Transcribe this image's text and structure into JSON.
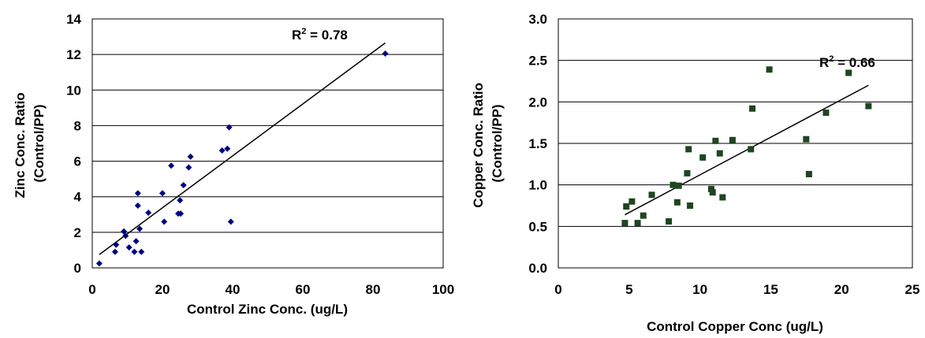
{
  "chart_data": [
    {
      "type": "scatter",
      "xlabel": "Control Zinc Conc. (ug/L)",
      "ylabel_lines": [
        "Zinc Conc. Ratio",
        "(Control/PP)"
      ],
      "xlim": [
        0,
        100
      ],
      "ylim": [
        0,
        14
      ],
      "xticks": [
        0,
        20,
        40,
        60,
        80,
        100
      ],
      "yticks": [
        0,
        2,
        4,
        6,
        8,
        10,
        12,
        14
      ],
      "grid": "horizontal",
      "marker": "diamond",
      "marker_color": "#000080",
      "annotation": {
        "r2_label": "R",
        "r2_sup": "2",
        "r2_value": " = 0.78"
      },
      "trendline": {
        "x": [
          2,
          83.5
        ],
        "y": [
          0.75,
          12.65
        ]
      },
      "points": [
        [
          2,
          0.25
        ],
        [
          6.5,
          0.9
        ],
        [
          6.8,
          1.3
        ],
        [
          9,
          2.05
        ],
        [
          9.5,
          1.8
        ],
        [
          10.5,
          1.15
        ],
        [
          12,
          0.9
        ],
        [
          12.5,
          1.5
        ],
        [
          13,
          3.5
        ],
        [
          13,
          4.2
        ],
        [
          13.5,
          2.2
        ],
        [
          14,
          0.9
        ],
        [
          16,
          3.1
        ],
        [
          20,
          4.2
        ],
        [
          20.5,
          2.6
        ],
        [
          22.5,
          5.75
        ],
        [
          24.5,
          3.05
        ],
        [
          25,
          3.8
        ],
        [
          25.2,
          3.05
        ],
        [
          26,
          4.65
        ],
        [
          27.5,
          5.65
        ],
        [
          28,
          6.25
        ],
        [
          37,
          6.6
        ],
        [
          38.5,
          6.7
        ],
        [
          39,
          7.9
        ],
        [
          39.5,
          2.6
        ],
        [
          83.5,
          12.05
        ]
      ]
    },
    {
      "type": "scatter",
      "xlabel": "Control Copper Conc (ug/L)",
      "ylabel_lines": [
        "Copper Conc. Ratio",
        "(Control/PP)"
      ],
      "xlim": [
        0,
        25
      ],
      "ylim": [
        0,
        3
      ],
      "xticks": [
        0,
        5,
        10,
        15,
        20,
        25
      ],
      "yticks": [
        0.0,
        0.5,
        1.0,
        1.5,
        2.0,
        2.5,
        3.0
      ],
      "ytick_labels": [
        "0.0",
        "0.5",
        "1.0",
        "1.5",
        "2.0",
        "2.5",
        "3.0"
      ],
      "grid": "horizontal",
      "marker": "square",
      "marker_color": "#1e4620",
      "annotation": {
        "r2_label": "R",
        "r2_sup": "2",
        "r2_value": " = 0.66"
      },
      "trendline": {
        "x": [
          4.7,
          21.9
        ],
        "y": [
          0.64,
          2.2
        ]
      },
      "points": [
        [
          4.7,
          0.54
        ],
        [
          4.8,
          0.74
        ],
        [
          5.2,
          0.8
        ],
        [
          5.6,
          0.54
        ],
        [
          6,
          0.63
        ],
        [
          6.6,
          0.88
        ],
        [
          7.8,
          0.56
        ],
        [
          8.1,
          1.0
        ],
        [
          8.4,
          0.79
        ],
        [
          8.5,
          0.99
        ],
        [
          9.1,
          1.14
        ],
        [
          9.2,
          1.43
        ],
        [
          9.3,
          0.75
        ],
        [
          10.2,
          1.33
        ],
        [
          10.8,
          0.95
        ],
        [
          10.9,
          0.91
        ],
        [
          11.1,
          1.53
        ],
        [
          11.4,
          1.38
        ],
        [
          11.6,
          0.85
        ],
        [
          12.3,
          1.54
        ],
        [
          13.6,
          1.43
        ],
        [
          13.7,
          1.92
        ],
        [
          14.9,
          2.39
        ],
        [
          17.5,
          1.55
        ],
        [
          17.7,
          1.13
        ],
        [
          18.9,
          1.87
        ],
        [
          20.5,
          2.35
        ],
        [
          21.9,
          1.95
        ]
      ]
    }
  ]
}
